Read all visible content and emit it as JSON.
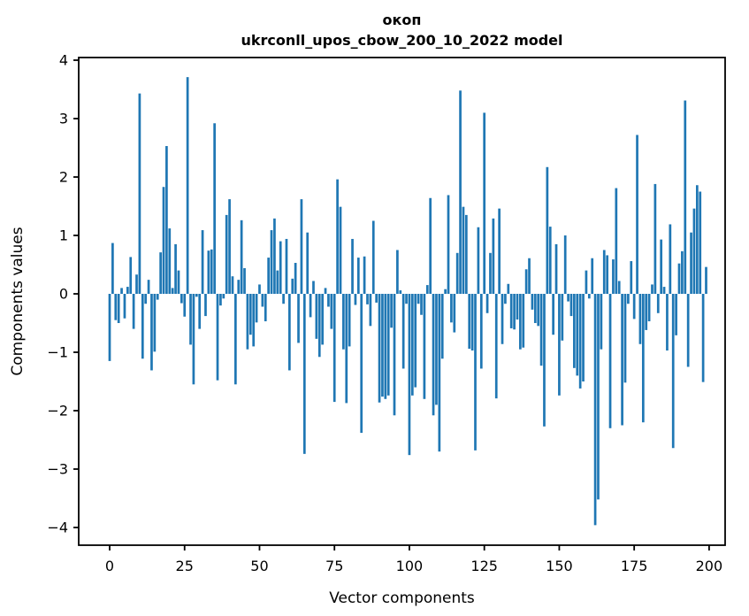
{
  "title": {
    "line1": "окоп",
    "line2": "ukrconll_upos_cbow_200_10_2022 model"
  },
  "axes": {
    "xlabel": "Vector components",
    "ylabel": "Components values",
    "x_ticks": [
      0,
      25,
      50,
      75,
      100,
      125,
      150,
      175,
      200
    ],
    "y_ticks": [
      4,
      3,
      2,
      1,
      0,
      -1,
      -2,
      -3,
      -4
    ],
    "y_tick_labels": [
      "4",
      "3",
      "2",
      "1",
      "0",
      "−1",
      "−2",
      "−3",
      "−4"
    ],
    "xlim": [
      -10.3,
      205.9
    ],
    "ylim": [
      -4.3,
      4.05
    ],
    "grid": false,
    "legend": "none"
  },
  "style": {
    "bar_color": "#1f77b4",
    "spine_color": "#000000",
    "background": "#ffffff"
  },
  "chart_data": {
    "type": "bar",
    "title": "окоп\nukrconll_upos_cbow_200_10_2022 model",
    "xlabel": "Vector components",
    "ylabel": "Components values",
    "x_range": [
      0,
      199
    ],
    "values": [
      -1.15,
      0.87,
      -0.45,
      -0.5,
      0.1,
      -0.42,
      0.12,
      0.63,
      -0.6,
      0.33,
      3.43,
      -1.11,
      -0.17,
      0.24,
      -1.31,
      -0.99,
      -0.1,
      0.71,
      1.83,
      2.53,
      1.12,
      0.1,
      0.85,
      0.4,
      -0.16,
      -0.39,
      3.71,
      -0.87,
      -1.55,
      -0.05,
      -0.6,
      1.09,
      -0.38,
      0.74,
      0.76,
      2.92,
      -1.48,
      -0.2,
      -0.08,
      1.35,
      1.62,
      0.3,
      -1.55,
      0.24,
      1.26,
      0.44,
      -0.95,
      -0.7,
      -0.9,
      -0.49,
      0.16,
      -0.22,
      -0.47,
      0.62,
      1.09,
      1.29,
      0.4,
      0.9,
      -0.17,
      0.94,
      -1.31,
      0.26,
      0.53,
      -0.84,
      1.62,
      -2.74,
      1.05,
      -0.4,
      0.22,
      -0.77,
      -1.08,
      -0.87,
      0.1,
      -0.22,
      -0.6,
      -1.85,
      1.96,
      1.49,
      -0.95,
      -1.87,
      -0.9,
      0.94,
      -0.19,
      0.62,
      -2.38,
      0.64,
      -0.18,
      -0.55,
      1.25,
      -0.15,
      -1.86,
      -1.76,
      -1.8,
      -1.74,
      -0.58,
      -2.08,
      0.75,
      0.06,
      -1.28,
      -0.17,
      -2.76,
      -1.74,
      -1.6,
      -0.17,
      -0.36,
      -1.8,
      0.15,
      1.64,
      -2.08,
      -1.9,
      -2.7,
      -1.11,
      0.08,
      1.69,
      -0.49,
      -0.66,
      0.7,
      3.48,
      1.49,
      1.35,
      -0.94,
      -0.97,
      -2.68,
      1.14,
      -1.28,
      3.1,
      -0.33,
      0.7,
      1.29,
      -1.79,
      1.46,
      -0.86,
      -0.17,
      0.17,
      -0.59,
      -0.61,
      -0.44,
      -0.95,
      -0.92,
      0.42,
      0.61,
      -0.27,
      -0.5,
      -0.55,
      -1.23,
      -2.27,
      2.17,
      1.15,
      -0.7,
      0.85,
      -1.74,
      -0.8,
      1.0,
      -0.13,
      -0.38,
      -1.27,
      -1.4,
      -1.62,
      -1.5,
      0.4,
      -0.08,
      0.61,
      -3.96,
      -3.52,
      -0.95,
      0.75,
      0.66,
      -2.3,
      0.59,
      1.81,
      0.22,
      -2.25,
      -1.52,
      -0.17,
      0.56,
      -0.43,
      2.72,
      -0.86,
      -2.2,
      -0.62,
      -0.47,
      0.16,
      1.88,
      -0.33,
      0.93,
      0.12,
      -0.97,
      1.19,
      -2.64,
      -0.71,
      0.52,
      0.73,
      3.31,
      -1.25,
      1.05,
      1.46,
      1.86,
      1.75,
      -1.51,
      0.46
    ]
  }
}
